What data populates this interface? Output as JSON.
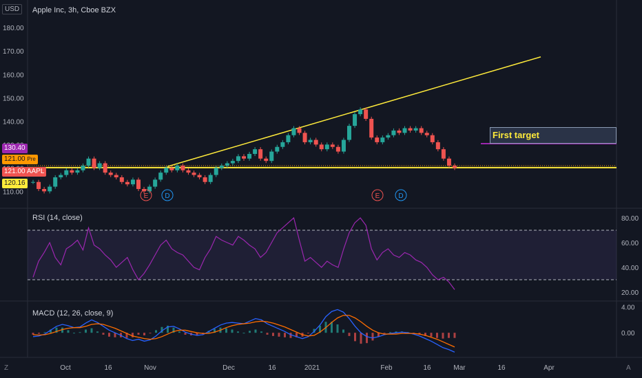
{
  "header": {
    "currency_button": "USD",
    "symbol_title": "Apple Inc, 3h, Cboe BZX"
  },
  "price_tags": {
    "purple": "130.40",
    "orange": "121.00",
    "orange_suffix": "Pre",
    "aapl_value": "121.00",
    "aapl_label": "AAPL",
    "yellow": "120.16"
  },
  "colors": {
    "background": "#131722",
    "bull": "#26a69a",
    "bear": "#ef5350",
    "trendline": "#ffeb3b",
    "target_line": "#9c27b0",
    "rsi": "#9c27b0",
    "macd": "#2962ff",
    "signal": "#ff6d00"
  },
  "annotations": {
    "target_label": "First target",
    "earnings_marker": "E",
    "dividend_marker": "D"
  },
  "corners": {
    "left": "Z",
    "right": "A"
  },
  "chart_data": [
    {
      "type": "candlestick",
      "title": "Apple Inc, 3h, Cboe BZX",
      "ylim": [
        106,
        183
      ],
      "y_ticks": [
        "110.00",
        "120.00",
        "130.00",
        "140.00",
        "150.00",
        "160.00",
        "170.00",
        "180.00"
      ],
      "x_ticks": [
        "Oct",
        "16",
        "Nov",
        "Dec",
        "16",
        "2021",
        "Feb",
        "16",
        "Mar",
        "16",
        "Apr"
      ],
      "close_series": [
        114,
        111,
        110,
        112,
        116,
        117,
        119,
        118,
        119,
        121,
        124,
        120,
        122,
        118,
        117,
        116,
        114,
        113,
        115,
        111,
        110,
        112,
        115,
        118,
        120,
        119,
        121,
        119,
        118,
        117,
        116,
        114,
        117,
        120,
        121,
        122,
        123,
        125,
        124,
        126,
        128,
        124,
        123,
        127,
        129,
        131,
        134,
        137,
        135,
        131,
        132,
        130,
        128,
        130,
        129,
        127,
        132,
        138,
        143,
        145,
        141,
        133,
        131,
        133,
        134,
        136,
        135,
        137,
        136,
        137,
        135,
        134,
        131,
        128,
        124,
        121,
        120
      ],
      "horizontal_lines": [
        120.16,
        130.4
      ]
    },
    {
      "type": "line",
      "title": "RSI (14, close)",
      "ylim": [
        15,
        85
      ],
      "y_ticks": [
        "20.00",
        "40.00",
        "60.00",
        "80.00"
      ],
      "bands": [
        30,
        70
      ],
      "values": [
        32,
        45,
        52,
        60,
        48,
        42,
        55,
        58,
        62,
        54,
        72,
        58,
        55,
        50,
        46,
        40,
        44,
        48,
        38,
        30,
        35,
        42,
        50,
        58,
        62,
        55,
        52,
        50,
        45,
        40,
        38,
        48,
        55,
        65,
        62,
        60,
        58,
        65,
        62,
        58,
        55,
        48,
        52,
        60,
        68,
        72,
        76,
        80,
        62,
        45,
        48,
        44,
        40,
        45,
        42,
        40,
        55,
        68,
        76,
        80,
        74,
        55,
        46,
        52,
        55,
        50,
        48,
        52,
        50,
        46,
        44,
        40,
        34,
        30,
        32,
        28,
        22
      ]
    },
    {
      "type": "line",
      "title": "MACD (12, 26, close, 9)",
      "ylim": [
        -3.6,
        4.6
      ],
      "y_ticks": [
        "0.00",
        "4.00"
      ],
      "macd": [
        -0.6,
        -0.5,
        -0.2,
        0.4,
        1.0,
        1.3,
        1.1,
        0.8,
        0.9,
        1.5,
        2.0,
        1.6,
        1.0,
        0.4,
        0.0,
        -0.4,
        -0.9,
        -1.2,
        -1.0,
        -1.3,
        -1.1,
        -0.5,
        0.3,
        0.9,
        1.0,
        0.6,
        0.1,
        -0.2,
        -0.4,
        -0.3,
        0.2,
        0.7,
        1.2,
        1.5,
        1.6,
        1.5,
        1.4,
        1.8,
        2.2,
        2.0,
        1.4,
        1.0,
        0.6,
        0.2,
        -0.3,
        -0.6,
        -0.9,
        -0.6,
        0.2,
        1.2,
        2.5,
        3.3,
        3.6,
        3.2,
        2.2,
        1.0,
        0.0,
        -0.6,
        -0.8,
        -0.6,
        -0.3,
        -0.1,
        0.0,
        0.1,
        0.0,
        -0.2,
        -0.5,
        -0.9,
        -1.3,
        -1.8,
        -2.3,
        -2.6,
        -3.0
      ],
      "signal": [
        -0.3,
        -0.35,
        -0.3,
        -0.1,
        0.2,
        0.5,
        0.7,
        0.8,
        0.8,
        1.0,
        1.3,
        1.4,
        1.3,
        1.0,
        0.7,
        0.3,
        -0.1,
        -0.5,
        -0.7,
        -0.9,
        -1.0,
        -0.9,
        -0.6,
        -0.2,
        0.2,
        0.4,
        0.4,
        0.2,
        0.0,
        -0.1,
        -0.1,
        0.1,
        0.4,
        0.8,
        1.1,
        1.3,
        1.4,
        1.5,
        1.7,
        1.8,
        1.7,
        1.5,
        1.2,
        0.9,
        0.5,
        0.1,
        -0.3,
        -0.5,
        -0.4,
        0.1,
        0.8,
        1.6,
        2.3,
        2.7,
        2.7,
        2.3,
        1.7,
        1.0,
        0.4,
        0.0,
        -0.2,
        -0.2,
        -0.2,
        -0.1,
        -0.1,
        -0.1,
        -0.2,
        -0.4,
        -0.7,
        -1.0,
        -1.4,
        -1.8,
        -2.2
      ]
    }
  ]
}
